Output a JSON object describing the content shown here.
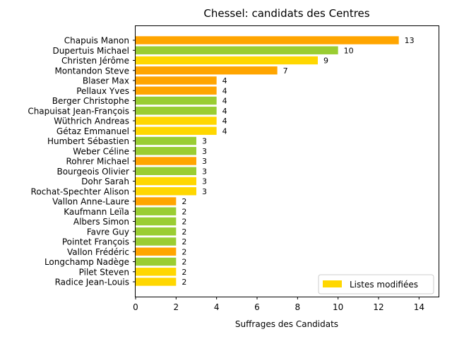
{
  "chart_data": {
    "type": "bar",
    "orientation": "horizontal",
    "title": "Chessel: candidats des Centres",
    "xlabel": "Suffrages des Candidats",
    "ylabel": "",
    "xlim": [
      0,
      15
    ],
    "xticks": [
      "0",
      "2",
      "4",
      "6",
      "8",
      "10",
      "12",
      "14"
    ],
    "grid": false,
    "legend": {
      "position": "bottom-right",
      "entries": [
        {
          "label": "Listes modifiées",
          "color": "#ffd700"
        }
      ]
    },
    "colors": {
      "orange": "#ffa500",
      "green": "#9acd32",
      "gold": "#ffd700"
    },
    "bars": [
      {
        "label": "Chapuis Manon",
        "value": 13,
        "color": "orange"
      },
      {
        "label": "Dupertuis Michael",
        "value": 10,
        "color": "green"
      },
      {
        "label": "Christen Jérôme",
        "value": 9,
        "color": "gold"
      },
      {
        "label": "Montandon Steve",
        "value": 7,
        "color": "orange"
      },
      {
        "label": "Blaser Max",
        "value": 4,
        "color": "orange"
      },
      {
        "label": "Pellaux Yves",
        "value": 4,
        "color": "orange"
      },
      {
        "label": "Berger Christophe",
        "value": 4,
        "color": "green"
      },
      {
        "label": "Chapuisat Jean-François",
        "value": 4,
        "color": "green"
      },
      {
        "label": "Wüthrich Andreas",
        "value": 4,
        "color": "gold"
      },
      {
        "label": "Gétaz Emmanuel",
        "value": 4,
        "color": "gold"
      },
      {
        "label": "Humbert Sébastien",
        "value": 3,
        "color": "green"
      },
      {
        "label": "Weber Céline",
        "value": 3,
        "color": "green"
      },
      {
        "label": "Rohrer Michael",
        "value": 3,
        "color": "orange"
      },
      {
        "label": "Bourgeois Olivier",
        "value": 3,
        "color": "green"
      },
      {
        "label": "Dohr Sarah",
        "value": 3,
        "color": "gold"
      },
      {
        "label": "Rochat-Spechter Alison",
        "value": 3,
        "color": "gold"
      },
      {
        "label": "Vallon Anne-Laure",
        "value": 2,
        "color": "orange"
      },
      {
        "label": "Kaufmann Leïla",
        "value": 2,
        "color": "green"
      },
      {
        "label": "Albers Simon",
        "value": 2,
        "color": "green"
      },
      {
        "label": "Favre Guy",
        "value": 2,
        "color": "green"
      },
      {
        "label": "Pointet François",
        "value": 2,
        "color": "green"
      },
      {
        "label": "Vallon Frédéric",
        "value": 2,
        "color": "orange"
      },
      {
        "label": "Longchamp Nadège",
        "value": 2,
        "color": "green"
      },
      {
        "label": "Pilet Steven",
        "value": 2,
        "color": "gold"
      },
      {
        "label": "Radice Jean-Louis",
        "value": 2,
        "color": "gold"
      }
    ]
  }
}
